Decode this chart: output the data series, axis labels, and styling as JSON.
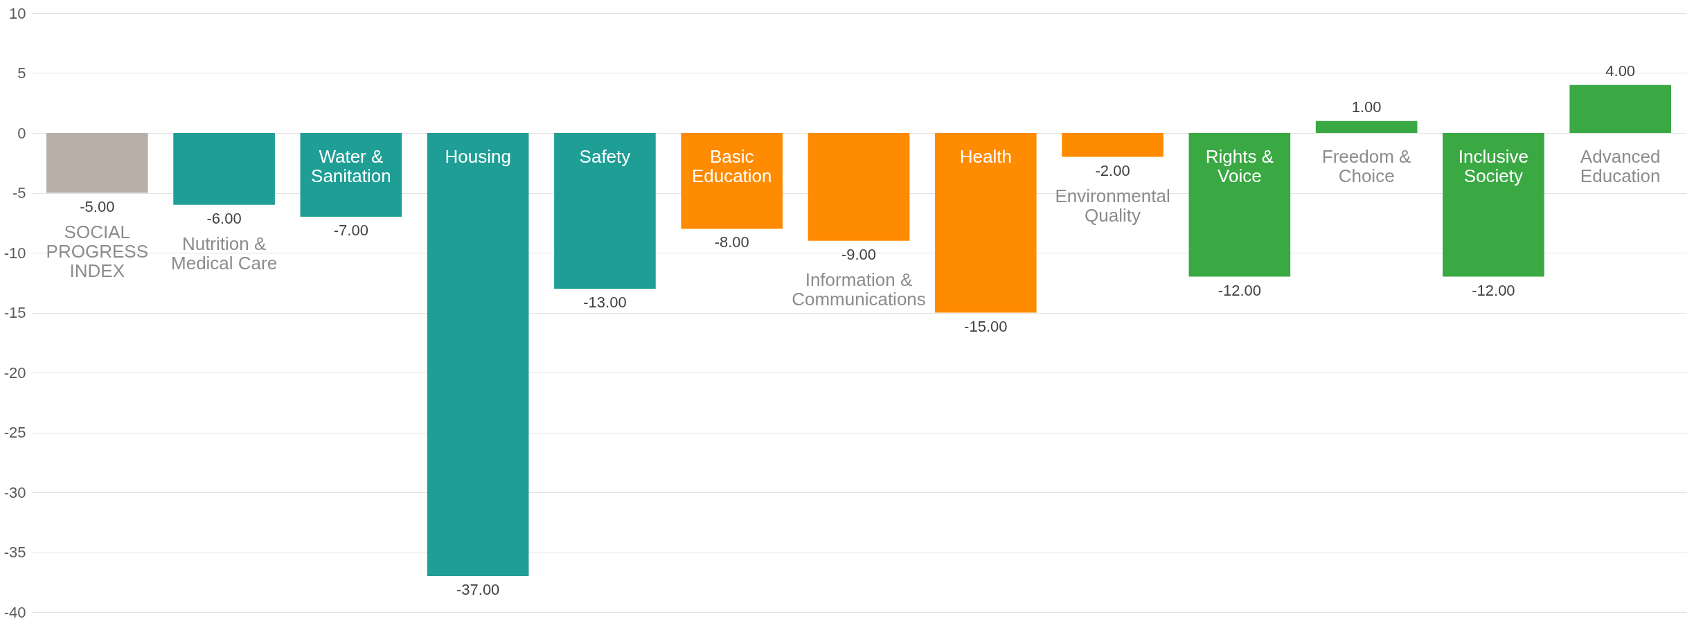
{
  "chart_data": {
    "type": "bar",
    "categories": [
      "SOCIAL PROGRESS INDEX",
      "Nutrition & Medical Care",
      "Water & Sanitation",
      "Housing",
      "Safety",
      "Basic Education",
      "Information & Communications",
      "Health",
      "Environmental Quality",
      "Rights & Voice",
      "Freedom & Choice",
      "Inclusive Society",
      "Advanced Education"
    ],
    "values": [
      -5,
      -6,
      -7,
      -37,
      -13,
      -8,
      -9,
      -15,
      -2,
      -12,
      1,
      -12,
      4
    ],
    "colors": [
      "#b9afa9",
      "#1f9e96",
      "#1f9e96",
      "#1f9e96",
      "#1f9e96",
      "#ff8b00",
      "#ff8b00",
      "#ff8b00",
      "#ff8b00",
      "#3aa843",
      "#3aa843",
      "#3aa843",
      "#3aa843"
    ],
    "value_labels": [
      "-5.00",
      "-6.00",
      "-7.00",
      "-37.00",
      "-13.00",
      "-8.00",
      "-9.00",
      "-15.00",
      "-2.00",
      "-12.00",
      "1.00",
      "-12.00",
      "4.00"
    ],
    "ylim": [
      -40,
      10
    ],
    "yticks": [
      -40,
      -35,
      -30,
      -25,
      -20,
      -15,
      -10,
      -5,
      0,
      5,
      10
    ],
    "grid": "y"
  }
}
